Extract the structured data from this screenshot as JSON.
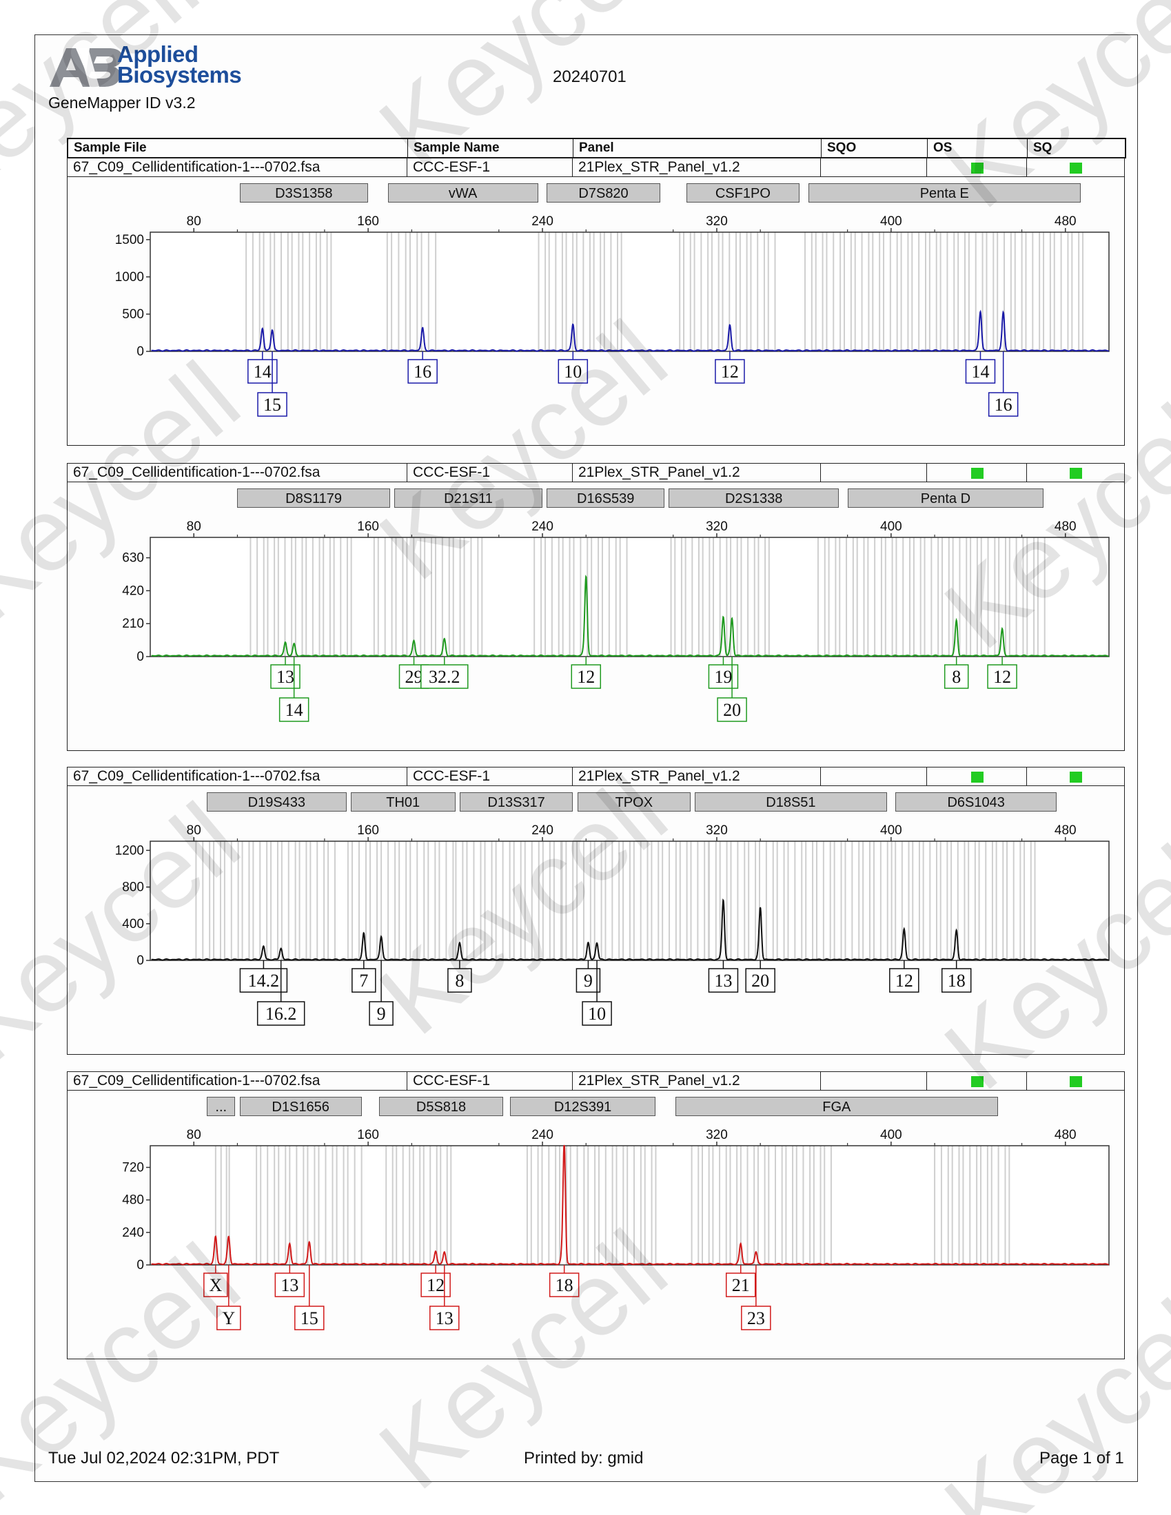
{
  "header": {
    "logo_line1": "Applied",
    "logo_line2": "Biosystems",
    "app_name": "GeneMapper ID v3.2",
    "report_title": "20240701"
  },
  "columns": [
    "Sample File",
    "Sample Name",
    "Panel",
    "SQO",
    "OS",
    "SQ"
  ],
  "sample": {
    "file": "67_C09_Cellidentification-1---0702.fsa",
    "name": "CCC-ESF-1",
    "panel": "21Plex_STR_Panel_v1.2",
    "os_color": "#22cc22",
    "sq_color": "#22cc22"
  },
  "watermark": "Keycell",
  "chart_data": [
    {
      "type": "line",
      "dye": "blue",
      "color": "#1a1aa8",
      "xlim": [
        60,
        500
      ],
      "x_ticks": [
        80,
        160,
        240,
        320,
        400,
        480
      ],
      "ylim": [
        0,
        1600
      ],
      "y_ticks": [
        0,
        500,
        1000,
        1500
      ],
      "markers": [
        {
          "label": "D3S1358",
          "start": 101,
          "end": 160
        },
        {
          "label": "vWA",
          "start": 169,
          "end": 238
        },
        {
          "label": "D7S820",
          "start": 242,
          "end": 294
        },
        {
          "label": "CSF1PO",
          "start": 306,
          "end": 358
        },
        {
          "label": "Penta E",
          "start": 362,
          "end": 487
        }
      ],
      "bin_ranges": [
        [
          104,
          143
        ],
        [
          168,
          190
        ],
        [
          238,
          276
        ],
        [
          302,
          346
        ],
        [
          360,
          488
        ]
      ],
      "peaks": [
        {
          "x": 111.5,
          "y": 290,
          "allele": "14"
        },
        {
          "x": 116,
          "y": 275,
          "allele": "15"
        },
        {
          "x": 185,
          "y": 300,
          "allele": "16"
        },
        {
          "x": 254,
          "y": 345,
          "allele": "10"
        },
        {
          "x": 326,
          "y": 335,
          "allele": "12"
        },
        {
          "x": 441,
          "y": 520,
          "allele": "14"
        },
        {
          "x": 451.5,
          "y": 500,
          "allele": "16"
        }
      ]
    },
    {
      "type": "line",
      "dye": "green",
      "color": "#1f9a1f",
      "xlim": [
        60,
        500
      ],
      "x_ticks": [
        80,
        160,
        240,
        320,
        400,
        480
      ],
      "ylim": [
        0,
        760
      ],
      "y_ticks": [
        0,
        210,
        420,
        630
      ],
      "markers": [
        {
          "label": "D8S1179",
          "start": 100,
          "end": 170
        },
        {
          "label": "D21S11",
          "start": 172,
          "end": 240
        },
        {
          "label": "D16S539",
          "start": 242,
          "end": 296
        },
        {
          "label": "D2S1338",
          "start": 298,
          "end": 376
        },
        {
          "label": "Penta D",
          "start": 380,
          "end": 470
        }
      ],
      "bin_ranges": [
        [
          106,
          152
        ],
        [
          162,
          212
        ],
        [
          236,
          278
        ],
        [
          298,
          344
        ],
        [
          366,
          470
        ]
      ],
      "peaks": [
        {
          "x": 122,
          "y": 85,
          "allele": "13"
        },
        {
          "x": 126,
          "y": 75,
          "allele": "14"
        },
        {
          "x": 181,
          "y": 95,
          "allele": "29"
        },
        {
          "x": 195,
          "y": 105,
          "allele": "32.2"
        },
        {
          "x": 260,
          "y": 500,
          "allele": "12"
        },
        {
          "x": 323,
          "y": 245,
          "allele": "19"
        },
        {
          "x": 327,
          "y": 235,
          "allele": "20"
        },
        {
          "x": 430,
          "y": 220,
          "allele": "8"
        },
        {
          "x": 451,
          "y": 170,
          "allele": "12"
        }
      ]
    },
    {
      "type": "line",
      "dye": "black",
      "color": "#111111",
      "xlim": [
        60,
        500
      ],
      "x_ticks": [
        80,
        160,
        240,
        320,
        400,
        480
      ],
      "ylim": [
        0,
        1300
      ],
      "y_ticks": [
        0,
        400,
        800,
        1200
      ],
      "markers": [
        {
          "label": "D19S433",
          "start": 86,
          "end": 150
        },
        {
          "label": "TH01",
          "start": 152,
          "end": 200
        },
        {
          "label": "D13S317",
          "start": 202,
          "end": 254
        },
        {
          "label": "TPOX",
          "start": 256,
          "end": 308
        },
        {
          "label": "D18S51",
          "start": 310,
          "end": 398
        },
        {
          "label": "D6S1043",
          "start": 402,
          "end": 476
        }
      ],
      "bin_ranges": [
        [
          81,
          144
        ],
        [
          150,
          198
        ],
        [
          200,
          248
        ],
        [
          248,
          316
        ],
        [
          316,
          400
        ],
        [
          402,
          466
        ]
      ],
      "peaks": [
        {
          "x": 112,
          "y": 145,
          "allele": "14.2"
        },
        {
          "x": 120,
          "y": 120,
          "allele": "16.2"
        },
        {
          "x": 158,
          "y": 280,
          "allele": "7"
        },
        {
          "x": 166,
          "y": 250,
          "allele": "9"
        },
        {
          "x": 202,
          "y": 180,
          "allele": "8"
        },
        {
          "x": 261,
          "y": 180,
          "allele": "9"
        },
        {
          "x": 265,
          "y": 180,
          "allele": "10"
        },
        {
          "x": 323,
          "y": 640,
          "allele": "13"
        },
        {
          "x": 340,
          "y": 560,
          "allele": "20"
        },
        {
          "x": 406,
          "y": 330,
          "allele": "12"
        },
        {
          "x": 430,
          "y": 310,
          "allele": "18"
        }
      ]
    },
    {
      "type": "line",
      "dye": "red",
      "color": "#d11a1a",
      "xlim": [
        60,
        500
      ],
      "x_ticks": [
        80,
        160,
        240,
        320,
        400,
        480
      ],
      "ylim": [
        0,
        880
      ],
      "y_ticks": [
        0,
        240,
        480,
        720
      ],
      "markers": [
        {
          "label": "...",
          "start": 86,
          "end": 99
        },
        {
          "label": "D1S1656",
          "start": 101,
          "end": 157
        },
        {
          "label": "D5S818",
          "start": 165,
          "end": 222
        },
        {
          "label": "D12S391",
          "start": 225,
          "end": 292
        },
        {
          "label": "FGA",
          "start": 301,
          "end": 449
        }
      ],
      "bin_ranges": [
        [
          90,
          96
        ],
        [
          108,
          156
        ],
        [
          168,
          198
        ],
        [
          232,
          292
        ],
        [
          308,
          372
        ],
        [
          420,
          454
        ]
      ],
      "peaks": [
        {
          "x": 90,
          "y": 200,
          "allele": "X"
        },
        {
          "x": 96,
          "y": 200,
          "allele": "Y"
        },
        {
          "x": 124,
          "y": 150,
          "allele": "13"
        },
        {
          "x": 133,
          "y": 160,
          "allele": "15"
        },
        {
          "x": 191,
          "y": 95,
          "allele": "12"
        },
        {
          "x": 195,
          "y": 85,
          "allele": "13"
        },
        {
          "x": 250,
          "y": 880,
          "allele": "18"
        },
        {
          "x": 331,
          "y": 150,
          "allele": "21"
        },
        {
          "x": 338,
          "y": 90,
          "allele": "23"
        }
      ]
    }
  ],
  "footer": {
    "timestamp": "Tue Jul 02,2024 02:31PM, PDT",
    "printed_by": "Printed by: gmid",
    "page": "Page 1 of 1"
  }
}
